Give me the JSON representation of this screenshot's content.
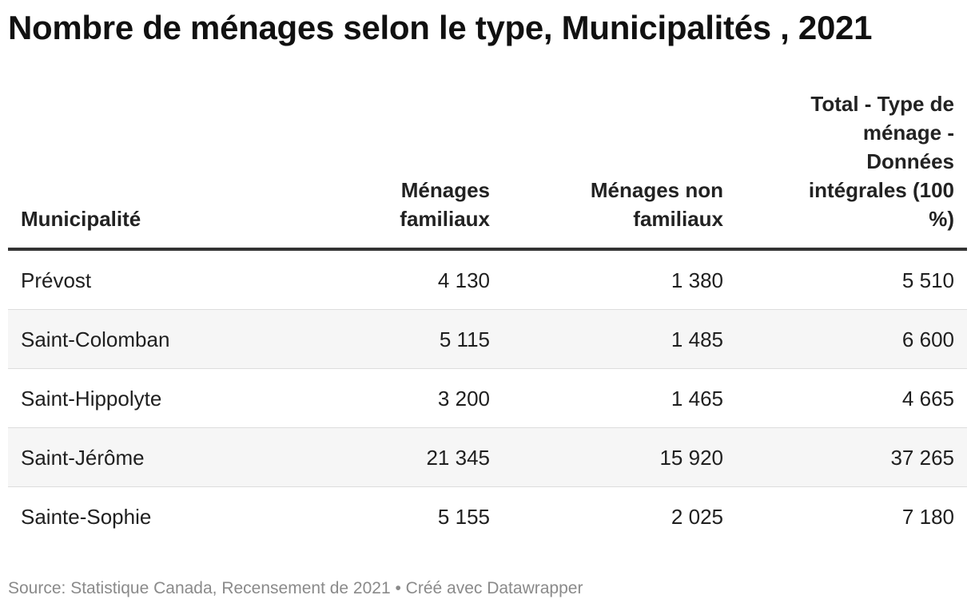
{
  "title": "Nombre de ménages selon le type, Municipalités , 2021",
  "columns": [
    "Municipalité",
    "Ménages familiaux",
    "Ménages non familiaux",
    "Total - Type de ménage - Données intégrales (100 %)"
  ],
  "rows": [
    {
      "name": "Prévost",
      "a": "4 130",
      "b": "1 380",
      "c": "5 510"
    },
    {
      "name": "Saint-Colomban",
      "a": "5 115",
      "b": "1 485",
      "c": "6 600"
    },
    {
      "name": "Saint-Hippolyte",
      "a": "3 200",
      "b": "1 465",
      "c": "4 665"
    },
    {
      "name": "Saint-Jérôme",
      "a": "21 345",
      "b": "15 920",
      "c": "37 265"
    },
    {
      "name": "Sainte-Sophie",
      "a": "5 155",
      "b": "2 025",
      "c": "7 180"
    }
  ],
  "footer": "Source: Statistique Canada, Recensement de 2021 • Créé avec Datawrapper",
  "colors": {
    "header_rule": "#333333",
    "row_alt": "#f6f6f6",
    "source_text": "#8a8a8a"
  },
  "chart_data": {
    "type": "table",
    "title": "Nombre de ménages selon le type, Municipalités , 2021",
    "columns": [
      "Municipalité",
      "Ménages familiaux",
      "Ménages non familiaux",
      "Total - Type de ménage - Données intégrales (100 %)"
    ],
    "rows": [
      [
        "Prévost",
        4130,
        1380,
        5510
      ],
      [
        "Saint-Colomban",
        5115,
        1485,
        6600
      ],
      [
        "Saint-Hippolyte",
        3200,
        1465,
        4665
      ],
      [
        "Saint-Jérôme",
        21345,
        15920,
        37265
      ],
      [
        "Sainte-Sophie",
        5155,
        2025,
        7180
      ]
    ]
  }
}
